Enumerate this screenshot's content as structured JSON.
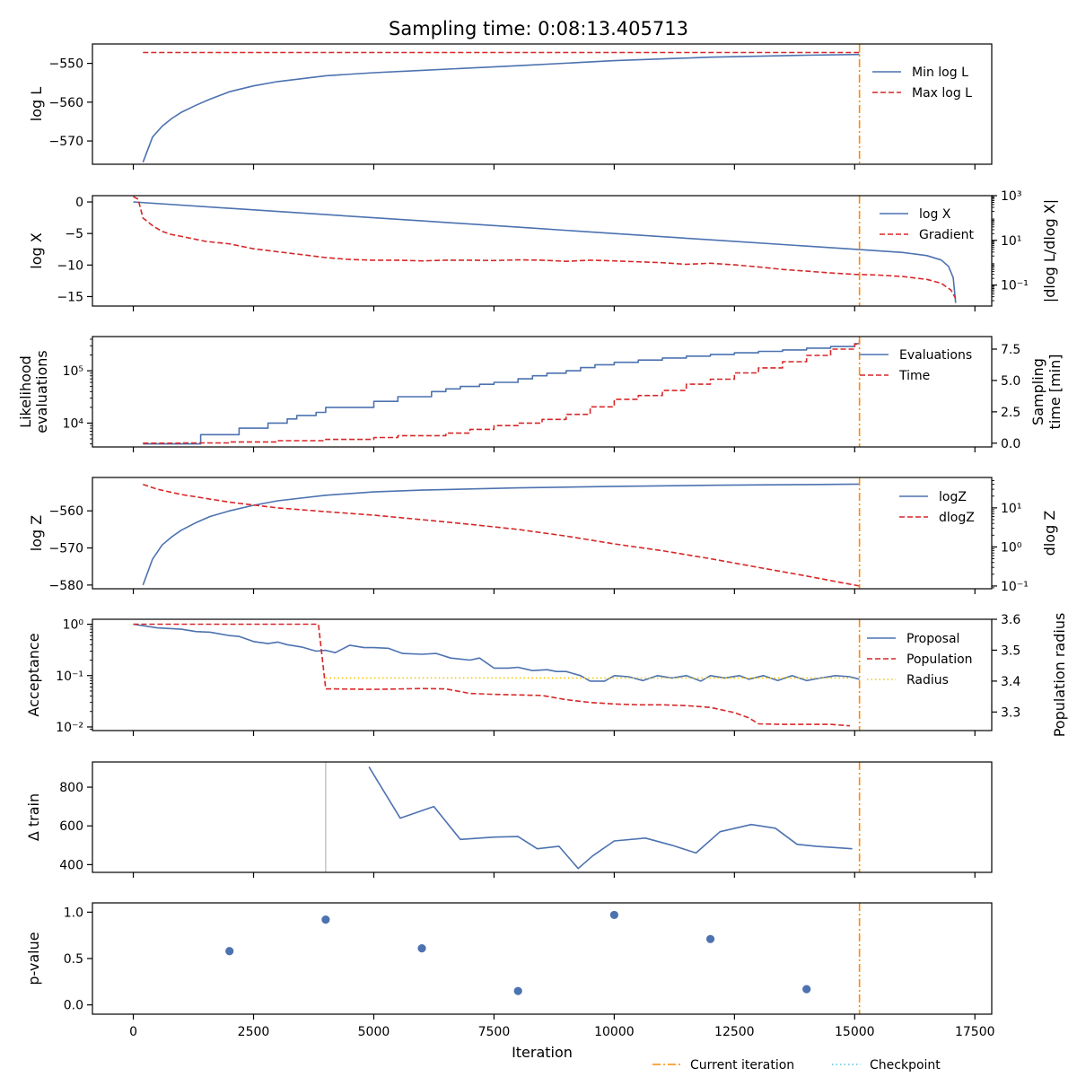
{
  "title": "Sampling time: 0:08:13.405713",
  "colors": {
    "blue": "#4c72b0",
    "red": "#d62728",
    "orange": "#ff8c00",
    "yellow": "#f2c500",
    "checkpoint": "#5bc0de",
    "gray": "#bbbbbb"
  },
  "xaxis": {
    "label": "Iteration",
    "lim": [
      -850,
      17850
    ],
    "ticks": [
      0,
      2500,
      5000,
      7500,
      10000,
      12500,
      15000,
      17500
    ],
    "tick_labels": [
      "0",
      "2500",
      "5000",
      "7500",
      "10000",
      "12500",
      "15000",
      "17500"
    ]
  },
  "current_iteration": 15100,
  "figure_legend": [
    {
      "label": "Current iteration",
      "color": "#ff8c00",
      "style": "dashdot"
    },
    {
      "label": "Checkpoint",
      "color": "#5bc0de",
      "style": "dotted"
    }
  ],
  "chart_data": [
    {
      "type": "line",
      "ylabel": "log L",
      "ylim": [
        -576,
        -545
      ],
      "yticks": [
        -550,
        -560,
        -570
      ],
      "ytick_labels": [
        "−550",
        "−560",
        "−570"
      ],
      "legend": [
        "Min log L",
        "Max log L"
      ],
      "series": [
        {
          "name": "Min log L",
          "color": "#4c72b0",
          "style": "solid",
          "x": [
            200,
            400,
            600,
            800,
            1000,
            1300,
            1600,
            2000,
            2500,
            3000,
            4000,
            5000,
            6000,
            8000,
            10000,
            12000,
            14000,
            15100
          ],
          "y": [
            -575.5,
            -569,
            -566.2,
            -564.2,
            -562.6,
            -560.8,
            -559.2,
            -557.3,
            -555.8,
            -554.7,
            -553.2,
            -552.4,
            -551.8,
            -550.6,
            -549.3,
            -548.4,
            -547.9,
            -547.7
          ]
        },
        {
          "name": "Max log L",
          "color": "#d62728",
          "style": "dashed",
          "x": [
            200,
            15100
          ],
          "y": [
            -547.2,
            -547.2
          ]
        }
      ]
    },
    {
      "type": "line",
      "ylabel": "log X",
      "ylabel2": "|dlog L/dlog X|",
      "ylim": [
        -16.5,
        1
      ],
      "yticks": [
        0,
        -5,
        -10,
        -15
      ],
      "ytick_labels": [
        "0",
        "−5",
        "−10",
        "−15"
      ],
      "y2_log": true,
      "y2lim": [
        0.0115,
        1000
      ],
      "y2ticks": [
        1000,
        10,
        0.1
      ],
      "y2tick_labels": [
        "10³",
        "10¹",
        "10⁻¹"
      ],
      "legend": [
        "log X",
        "Gradient"
      ],
      "series": [
        {
          "name": "log X",
          "color": "#4c72b0",
          "style": "solid",
          "axis": "left",
          "x": [
            0,
            2000,
            4000,
            6000,
            8000,
            10000,
            12000,
            14000,
            15100,
            16000,
            16500,
            16800,
            16950,
            17050,
            17100
          ],
          "y": [
            0,
            -1.0,
            -2.0,
            -3.0,
            -4.0,
            -5.0,
            -6.0,
            -7.0,
            -7.55,
            -8.0,
            -8.5,
            -9.2,
            -10.2,
            -12.0,
            -16.0
          ]
        },
        {
          "name": "Gradient",
          "color": "#d62728",
          "style": "dashed",
          "axis": "right",
          "x": [
            0,
            100,
            200,
            400,
            600,
            800,
            1000,
            1500,
            2000,
            2500,
            3000,
            3500,
            4000,
            4500,
            5000,
            5500,
            6000,
            6500,
            7000,
            7500,
            8000,
            8500,
            9000,
            9500,
            10000,
            10500,
            11000,
            11500,
            12000,
            12500,
            13000,
            13500,
            14000,
            14500,
            15000,
            15500,
            16000,
            16500,
            16800,
            17000,
            17100
          ],
          "y": [
            900,
            700,
            100,
            45,
            25,
            18,
            15,
            9,
            7,
            4.2,
            3.1,
            2.3,
            1.7,
            1.4,
            1.3,
            1.3,
            1.2,
            1.3,
            1.3,
            1.25,
            1.35,
            1.3,
            1.15,
            1.3,
            1.2,
            1.1,
            1.0,
            0.85,
            0.95,
            0.8,
            0.65,
            0.5,
            0.42,
            0.35,
            0.3,
            0.28,
            0.24,
            0.18,
            0.12,
            0.06,
            0.025
          ]
        }
      ]
    },
    {
      "type": "line",
      "ylabel": "Likelihood evaluations",
      "ylabel2": "Sampling time [min]",
      "y_log": true,
      "ylim": [
        3500,
        450000
      ],
      "yticks": [
        100000,
        10000
      ],
      "ytick_labels": [
        "10⁵",
        "10⁴"
      ],
      "y2lim": [
        -0.3,
        8.5
      ],
      "y2ticks": [
        7.5,
        5.0,
        2.5,
        0.0
      ],
      "y2tick_labels": [
        "7.5",
        "5.0",
        "2.5",
        "0.0"
      ],
      "legend": [
        "Evaluations",
        "Time"
      ],
      "series": [
        {
          "name": "Evaluations",
          "color": "#4c72b0",
          "style": "steps",
          "axis": "left",
          "x": [
            200,
            1200,
            1400,
            2000,
            2200,
            2600,
            2800,
            3200,
            3400,
            3800,
            4000,
            4400,
            5000,
            5500,
            6200,
            6500,
            6800,
            7200,
            7500,
            8000,
            8300,
            8600,
            9000,
            9300,
            9600,
            10000,
            10500,
            11000,
            11500,
            12000,
            12500,
            13000,
            13500,
            14000,
            14500,
            15000,
            15100
          ],
          "y": [
            4000,
            4000,
            6000,
            6000,
            8000,
            8000,
            10000,
            12000,
            14000,
            16000,
            20000,
            20000,
            26000,
            32000,
            40000,
            45000,
            50000,
            55000,
            60000,
            70000,
            80000,
            90000,
            100000,
            115000,
            130000,
            145000,
            160000,
            175000,
            190000,
            205000,
            220000,
            235000,
            250000,
            270000,
            290000,
            330000,
            340000
          ]
        },
        {
          "name": "Time",
          "color": "#d62728",
          "style": "steps",
          "axis": "right",
          "x": [
            200,
            1000,
            2000,
            3000,
            4000,
            5000,
            5500,
            6500,
            7000,
            7500,
            8000,
            8500,
            9000,
            9500,
            10000,
            10500,
            11000,
            11500,
            12000,
            12500,
            13000,
            13500,
            14000,
            14500,
            15000,
            15100
          ],
          "y": [
            0.0,
            0.02,
            0.1,
            0.2,
            0.3,
            0.45,
            0.6,
            0.8,
            1.1,
            1.4,
            1.6,
            1.9,
            2.3,
            2.9,
            3.5,
            3.8,
            4.2,
            4.7,
            5.1,
            5.6,
            6.0,
            6.5,
            7.0,
            7.5,
            7.9,
            8.2
          ]
        }
      ]
    },
    {
      "type": "line",
      "ylabel": "log Z",
      "ylabel2": "dlog Z",
      "ylim": [
        -581,
        -551
      ],
      "yticks": [
        -560,
        -570,
        -580
      ],
      "ytick_labels": [
        "−560",
        "−570",
        "−580"
      ],
      "y2_log": true,
      "y2lim": [
        0.085,
        60
      ],
      "y2ticks": [
        10,
        1,
        0.1
      ],
      "y2tick_labels": [
        "10¹",
        "10⁰",
        "10⁻¹"
      ],
      "legend": [
        "logZ",
        "dlogZ"
      ],
      "series": [
        {
          "name": "logZ",
          "color": "#4c72b0",
          "style": "solid",
          "axis": "left",
          "x": [
            200,
            400,
            600,
            800,
            1000,
            1300,
            1600,
            2000,
            2500,
            3000,
            4000,
            5000,
            6000,
            8000,
            10000,
            12000,
            14000,
            15100
          ],
          "y": [
            -580,
            -573,
            -569.2,
            -567,
            -565.2,
            -563.2,
            -561.5,
            -560,
            -558.5,
            -557.3,
            -555.8,
            -554.9,
            -554.4,
            -553.8,
            -553.4,
            -553.1,
            -552.9,
            -552.8
          ]
        },
        {
          "name": "dlogZ",
          "color": "#d62728",
          "style": "dashed",
          "axis": "right",
          "x": [
            200,
            500,
            1000,
            2000,
            3000,
            4000,
            5000,
            6000,
            7000,
            8000,
            9000,
            10000,
            11000,
            12000,
            13000,
            14000,
            15100
          ],
          "y": [
            40,
            30,
            22,
            14,
            10,
            8,
            6.5,
            5,
            3.8,
            2.8,
            1.9,
            1.2,
            0.8,
            0.5,
            0.3,
            0.18,
            0.1
          ]
        }
      ]
    },
    {
      "type": "line",
      "ylabel": "Acceptance",
      "ylabel2": "Population radius",
      "y_log": true,
      "ylim": [
        0.0085,
        1.25
      ],
      "yticks": [
        1,
        0.1,
        0.01
      ],
      "ytick_labels": [
        "10⁰",
        "10⁻¹",
        "10⁻²"
      ],
      "y2lim": [
        3.24,
        3.6
      ],
      "y2ticks": [
        3.6,
        3.5,
        3.4,
        3.3
      ],
      "y2tick_labels": [
        "3.6",
        "3.5",
        "3.4",
        "3.3"
      ],
      "legend": [
        "Proposal",
        "Population",
        "Radius"
      ],
      "series": [
        {
          "name": "Proposal",
          "color": "#4c72b0",
          "style": "solid",
          "axis": "left",
          "x": [
            0,
            500,
            1000,
            1300,
            1600,
            2000,
            2200,
            2500,
            2800,
            3000,
            3200,
            3500,
            3800,
            4000,
            4200,
            4500,
            4800,
            5000,
            5300,
            5600,
            6000,
            6300,
            6600,
            7000,
            7200,
            7500,
            7800,
            8000,
            8300,
            8600,
            8800,
            9000,
            9300,
            9500,
            9800,
            10000,
            10300,
            10600,
            10900,
            11200,
            11500,
            11800,
            12000,
            12300,
            12600,
            12800,
            13100,
            13400,
            13700,
            14000,
            14300,
            14600,
            14900,
            15100
          ],
          "y": [
            1.0,
            0.85,
            0.8,
            0.72,
            0.7,
            0.6,
            0.58,
            0.46,
            0.42,
            0.45,
            0.4,
            0.36,
            0.3,
            0.31,
            0.28,
            0.39,
            0.35,
            0.35,
            0.34,
            0.27,
            0.26,
            0.27,
            0.22,
            0.2,
            0.22,
            0.14,
            0.14,
            0.145,
            0.125,
            0.13,
            0.12,
            0.12,
            0.1,
            0.078,
            0.078,
            0.1,
            0.095,
            0.08,
            0.1,
            0.09,
            0.1,
            0.078,
            0.1,
            0.09,
            0.1,
            0.085,
            0.1,
            0.08,
            0.1,
            0.08,
            0.09,
            0.1,
            0.095,
            0.085
          ]
        },
        {
          "name": "Population",
          "color": "#d62728",
          "style": "dashed",
          "axis": "left",
          "x": [
            0,
            3850,
            4000,
            4200,
            5000,
            6000,
            6500,
            7000,
            7500,
            8000,
            8500,
            9000,
            9500,
            10000,
            10500,
            11000,
            11500,
            12000,
            12500,
            12800,
            13000,
            13500,
            14000,
            14500,
            14900
          ],
          "y": [
            1.0,
            1.0,
            0.055,
            0.055,
            0.054,
            0.056,
            0.055,
            0.045,
            0.043,
            0.042,
            0.041,
            0.034,
            0.03,
            0.028,
            0.027,
            0.027,
            0.026,
            0.024,
            0.019,
            0.015,
            0.0115,
            0.0112,
            0.0112,
            0.0112,
            0.0105
          ]
        },
        {
          "name": "Radius",
          "color": "#f2c500",
          "style": "dotted",
          "axis": "right",
          "x": [
            4000,
            15000
          ],
          "y": [
            3.41,
            3.41
          ]
        }
      ]
    },
    {
      "type": "line",
      "ylabel": "Δ train",
      "ylim": [
        360,
        930
      ],
      "yticks": [
        800,
        600,
        400
      ],
      "ytick_labels": [
        "800",
        "600",
        "400"
      ],
      "checkpoint_x": 4000,
      "series": [
        {
          "name": "",
          "color": "#4c72b0",
          "style": "solid",
          "x": [
            4900,
            5550,
            6250,
            6800,
            7500,
            8000,
            8400,
            8850,
            9250,
            9550,
            10000,
            10650,
            11200,
            11700,
            12200,
            12850,
            13350,
            13800,
            14200,
            14950
          ],
          "y": [
            905,
            640,
            700,
            530,
            542,
            545,
            482,
            495,
            380,
            445,
            522,
            537,
            500,
            460,
            570,
            607,
            588,
            505,
            495,
            482
          ]
        }
      ]
    },
    {
      "type": "scatter",
      "ylabel": "p-value",
      "ylim": [
        -0.1,
        1.1
      ],
      "yticks": [
        1.0,
        0.5,
        0.0
      ],
      "ytick_labels": [
        "1.0",
        "0.5",
        "0.0"
      ],
      "series": [
        {
          "name": "",
          "color": "#4c72b0",
          "style": "points",
          "x": [
            2000,
            4000,
            6000,
            8000,
            10000,
            12000,
            14000
          ],
          "y": [
            0.58,
            0.92,
            0.61,
            0.15,
            0.97,
            0.71,
            0.17
          ]
        }
      ]
    }
  ]
}
